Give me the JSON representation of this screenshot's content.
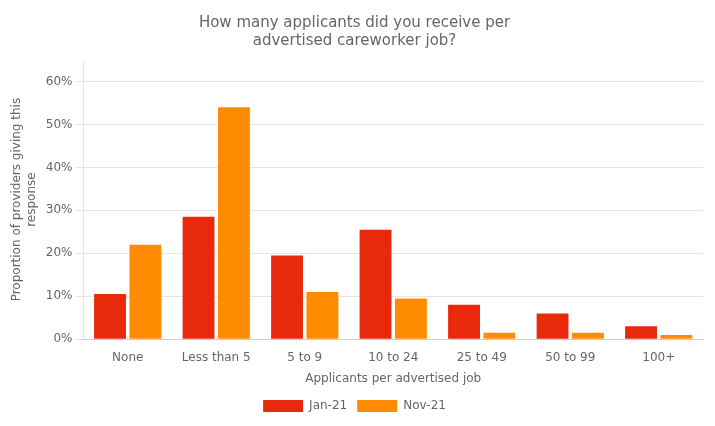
{
  "chart_data": {
    "type": "bar",
    "title": "How many applicants did you receive per\nadvertised careworker job?",
    "categories": [
      "None",
      "Less than 5",
      "5 to 9",
      "10 to 24",
      "25 to 49",
      "50 to 99",
      "100+"
    ],
    "series": [
      {
        "name": "Jan-21",
        "color": "#E8290B",
        "values": [
          10.5,
          28.5,
          19.5,
          25.5,
          8.0,
          6.0,
          3.0
        ]
      },
      {
        "name": "Nov-21",
        "color": "#FF8C00",
        "values": [
          22.0,
          54.0,
          11.0,
          9.5,
          1.5,
          1.5,
          1.0
        ]
      }
    ],
    "xlabel": "Applicants per advertised job",
    "ylabel": "Proportion of providers giving this\nresponse",
    "ylim": [
      0,
      65
    ],
    "yticks": [
      {
        "value": 0,
        "label": "0%"
      },
      {
        "value": 10,
        "label": "10%"
      },
      {
        "value": 20,
        "label": "20%"
      },
      {
        "value": 30,
        "label": "30%"
      },
      {
        "value": 40,
        "label": "40%"
      },
      {
        "value": 50,
        "label": "50%"
      },
      {
        "value": 60,
        "label": "60%"
      }
    ],
    "grid": true,
    "legend": "bottom"
  }
}
